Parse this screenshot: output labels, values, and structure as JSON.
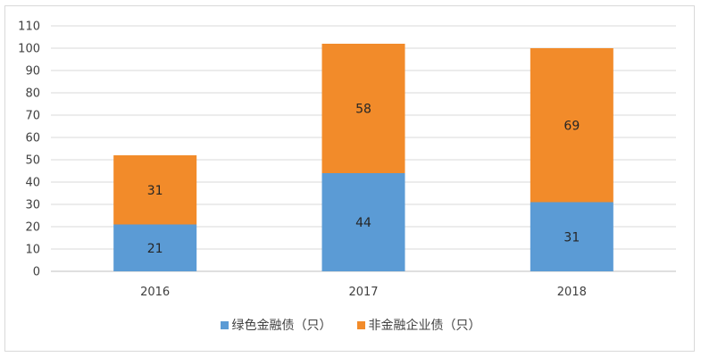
{
  "chart_data": {
    "type": "bar",
    "stacked": true,
    "categories": [
      "2016",
      "2017",
      "2018"
    ],
    "series": [
      {
        "name": "绿色金融债（只）",
        "values": [
          21,
          44,
          31
        ],
        "color": "#5b9bd5"
      },
      {
        "name": "非金融企业债（只）",
        "values": [
          31,
          58,
          69
        ],
        "color": "#f28b2a"
      }
    ],
    "yticks": [
      "0",
      "10",
      "20",
      "30",
      "40",
      "50",
      "60",
      "70",
      "80",
      "90",
      "100",
      "110"
    ],
    "ylim": [
      0,
      110
    ],
    "grid": true,
    "legend_position": "bottom"
  }
}
